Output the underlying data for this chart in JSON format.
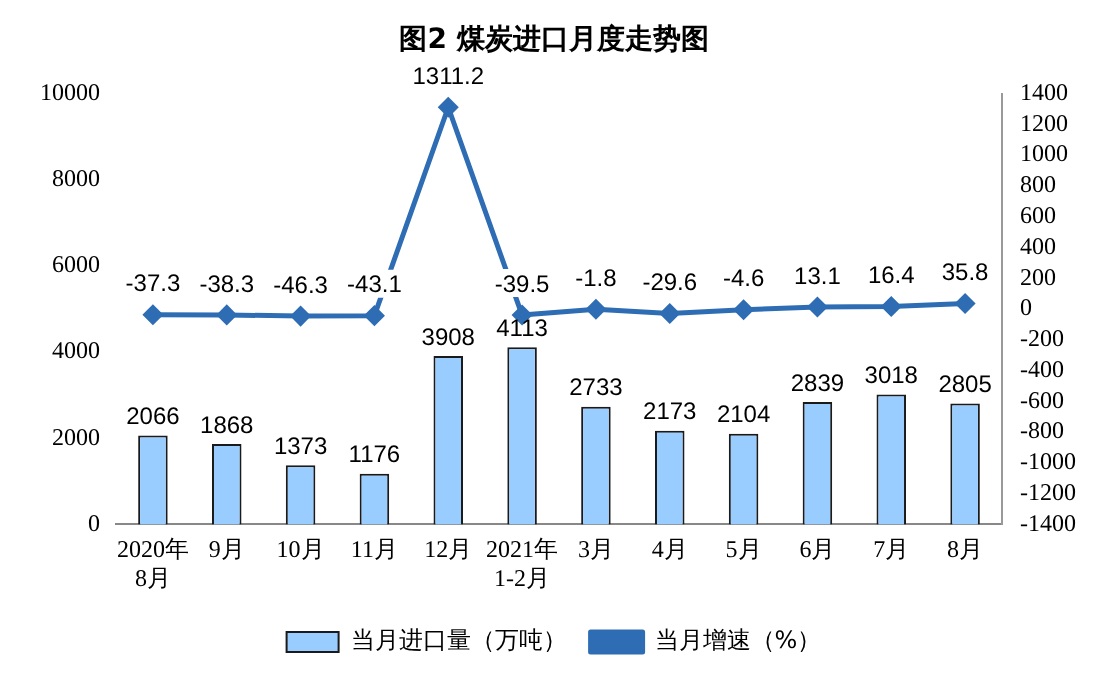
{
  "chart_data": {
    "type": "bar",
    "title": "图2 煤炭进口月度走势图",
    "categories": [
      "2020年\n8月",
      "9月",
      "10月",
      "11月",
      "12月",
      "2021年\n1-2月",
      "3月",
      "4月",
      "5月",
      "6月",
      "7月",
      "8月"
    ],
    "series": [
      {
        "name": "当月进口量（万吨）",
        "color": "#99ccff",
        "values": [
          2066,
          1868,
          1373,
          1176,
          3908,
          4113,
          2733,
          2173,
          2104,
          2839,
          3018,
          2805
        ]
      },
      {
        "name": "当月增速（%）",
        "type": "line",
        "axis": "y2",
        "color": "#2e6db4",
        "marker": "diamond",
        "values": [
          -37.3,
          -38.3,
          -46.3,
          -43.1,
          1311.2,
          -39.5,
          -1.8,
          -29.6,
          -4.6,
          13.1,
          16.4,
          35.8
        ]
      }
    ],
    "ylim": [
      0,
      10000
    ],
    "yticks": [
      0,
      2000,
      4000,
      6000,
      8000,
      10000
    ],
    "y2lim": [
      -1400,
      1400
    ],
    "y2ticks": [
      -1400,
      -1200,
      -1000,
      -800,
      -600,
      -400,
      -200,
      0,
      200,
      400,
      600,
      800,
      1000,
      1200,
      1400
    ],
    "data_labels": true,
    "grid": false,
    "legend": "bottom"
  }
}
